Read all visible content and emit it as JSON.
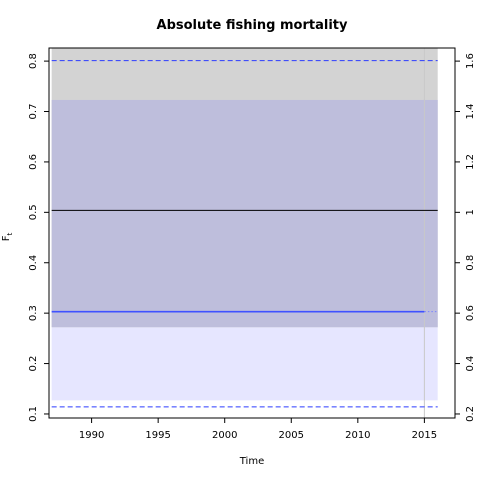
{
  "chart_data": {
    "type": "line",
    "title": "Absolute fishing mortality",
    "xlabel": "Time",
    "ylabel": "F",
    "ylabel_subscript": "t",
    "xlim": [
      1986.8,
      2017.3
    ],
    "ylim": [
      0.092,
      0.826
    ],
    "ylim_right": [
      0.184,
      1.652
    ],
    "x_ticks": [
      1990,
      1995,
      2000,
      2005,
      2010,
      2015
    ],
    "y_ticks": [
      0.1,
      0.2,
      0.3,
      0.4,
      0.5,
      0.6,
      0.7,
      0.8
    ],
    "y_ticks_right": [
      0.2,
      0.4,
      0.6,
      0.8,
      1.0,
      1.2,
      1.4,
      1.6
    ],
    "y_tick_labels_right": [
      "0.2",
      "0.4",
      "0.6",
      "0.8",
      "1",
      "1.2",
      "1.4",
      "1.6"
    ],
    "x_range": [
      1987,
      2016
    ],
    "current_year": 2015,
    "bands": [
      {
        "lower": 0.272,
        "upper": 0.826,
        "color": "#d3d3d3"
      },
      {
        "lower": 0.127,
        "upper": 0.272,
        "color": "#e6e6ff"
      },
      {
        "lower": 0.272,
        "upper": 0.723,
        "color": "#bebedc"
      }
    ],
    "series": [
      {
        "values": [
          0.504,
          0.504
        ],
        "x": [
          1987,
          2016
        ],
        "color": "#000000",
        "style": "solid"
      },
      {
        "values": [
          0.303,
          0.303
        ],
        "x": [
          1987,
          2015
        ],
        "color": "#3f51ff",
        "style": "solid"
      },
      {
        "values": [
          0.303,
          0.303
        ],
        "x": [
          2015,
          2016
        ],
        "color": "#7a84ff",
        "style": "dotted"
      },
      {
        "values": [
          0.801,
          0.801
        ],
        "x": [
          1987,
          2016
        ],
        "color": "#2b3bff",
        "style": "dashed"
      },
      {
        "values": [
          0.114,
          0.114
        ],
        "x": [
          1987,
          2016
        ],
        "color": "#2b3bff",
        "style": "dashed"
      }
    ]
  }
}
